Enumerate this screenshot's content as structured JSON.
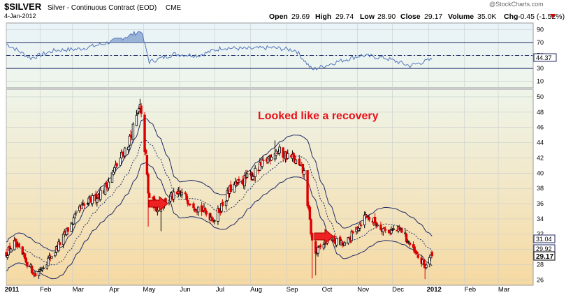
{
  "header": {
    "symbol": "$SILVER",
    "name": "Silver - Continuous Contract (EOD)",
    "exchange": "CME",
    "date": "4-Jan-2012",
    "open_label": "Open",
    "open": "29.69",
    "high_label": "High",
    "high": "29.74",
    "low_label": "Low",
    "low": "28.90",
    "close_label": "Close",
    "close": "29.17",
    "volume_label": "Volume",
    "volume": "35.0K",
    "chg_label": "Chg",
    "chg": "-0.45 (-1.52%)",
    "watermark": "@StockCharts.com"
  },
  "colors": {
    "up": "#000000",
    "down": "#dd0000",
    "rsi_line": "#5577bb",
    "rsi_fill": "#7799cc",
    "band": "#1f2a66",
    "annotation": "#e8101a",
    "panel_top": "#eef5ea",
    "panel_bottom": "#f7dca6",
    "grid": "#c8cccc"
  },
  "chart_data": [
    {
      "type": "line",
      "name": "RSI panel",
      "yticks": [
        10,
        30,
        50,
        70,
        90
      ],
      "ylim": [
        0,
        100
      ],
      "levels": [
        30,
        70
      ],
      "last_value_label": "44.37",
      "x": [
        "2011-01-03",
        "2011-01-24",
        "2011-02-14",
        "2011-03-07",
        "2011-03-28",
        "2011-04-18",
        "2011-04-29",
        "2011-05-06",
        "2011-05-27",
        "2011-06-17",
        "2011-07-08",
        "2011-07-29",
        "2011-08-19",
        "2011-09-09",
        "2011-09-23",
        "2011-10-14",
        "2011-11-04",
        "2011-11-25",
        "2011-12-16",
        "2012-01-04"
      ],
      "values": [
        68,
        46,
        58,
        60,
        68,
        80,
        88,
        40,
        52,
        50,
        62,
        60,
        62,
        58,
        28,
        40,
        50,
        46,
        34,
        44
      ]
    },
    {
      "type": "candlestick",
      "name": "Price panel",
      "yticks": [
        26,
        28,
        30,
        32,
        34,
        36,
        38,
        40,
        42,
        44,
        46,
        48,
        50
      ],
      "ylim": [
        25.3,
        51
      ],
      "xticks": [
        "2011",
        "Feb",
        "Mar",
        "Apr",
        "May",
        "Jun",
        "Jul",
        "Aug",
        "Sep",
        "Oct",
        "Nov",
        "Dec",
        "2012",
        "Feb",
        "Mar"
      ],
      "x_start": "2011-01-03",
      "x_end": "2012-03-31",
      "price_labels": [
        "31.04",
        "29.92",
        "29.17"
      ],
      "annotation": "Looked like a recovery",
      "anchors": [
        [
          "2011-01-03",
          29.5
        ],
        [
          "2011-01-10",
          30.8
        ],
        [
          "2011-01-28",
          26.6
        ],
        [
          "2011-02-14",
          29.8
        ],
        [
          "2011-03-07",
          35.2
        ],
        [
          "2011-03-28",
          37.8
        ],
        [
          "2011-04-18",
          44.0
        ],
        [
          "2011-04-28",
          48.5
        ],
        [
          "2011-05-03",
          42.0
        ],
        [
          "2011-05-05",
          37.2
        ],
        [
          "2011-05-12",
          35.5
        ],
        [
          "2011-05-24",
          36.8
        ],
        [
          "2011-06-03",
          37.2
        ],
        [
          "2011-06-17",
          35.5
        ],
        [
          "2011-07-01",
          34.0
        ],
        [
          "2011-07-15",
          38.0
        ],
        [
          "2011-08-05",
          40.0
        ],
        [
          "2011-08-22",
          43.0
        ],
        [
          "2011-09-06",
          42.0
        ],
        [
          "2011-09-16",
          40.0
        ],
        [
          "2011-09-23",
          31.0
        ],
        [
          "2011-09-26",
          29.5
        ],
        [
          "2011-10-07",
          31.5
        ],
        [
          "2011-10-21",
          30.5
        ],
        [
          "2011-11-08",
          34.5
        ],
        [
          "2011-11-25",
          32.5
        ],
        [
          "2011-12-09",
          32.5
        ],
        [
          "2011-12-20",
          29.5
        ],
        [
          "2011-12-29",
          27.8
        ],
        [
          "2012-01-04",
          29.2
        ]
      ]
    }
  ]
}
